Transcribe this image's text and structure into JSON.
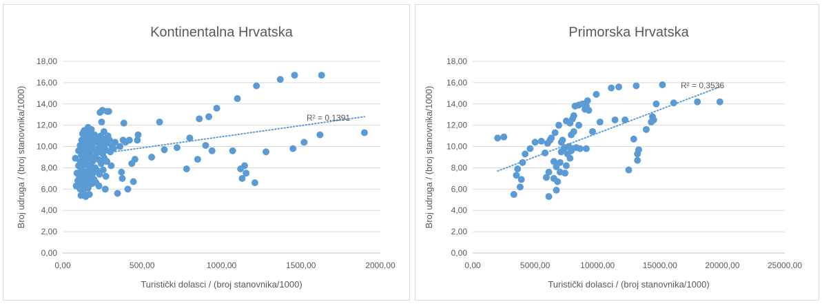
{
  "chart_data": [
    {
      "type": "scatter",
      "title": "Kontinentalna Hrvatska",
      "xlabel": "Turistički dolasci / (broj stanovnika/1000)",
      "ylabel": "Broj udruga / (broj stanovnika/1000)",
      "xlim": [
        0,
        2000
      ],
      "ylim": [
        0,
        18
      ],
      "x_ticks": [
        "0,00",
        "500,00",
        "1000,00",
        "1500,00",
        "2000,00"
      ],
      "y_ticks": [
        "0,00",
        "2,00",
        "4,00",
        "6,00",
        "8,00",
        "10,00",
        "12,00",
        "14,00",
        "16,00",
        "18,00"
      ],
      "marker_color": "#5b9bd5",
      "trendline": {
        "type": "linear",
        "style": "dotted",
        "color": "#5b9bd5",
        "r2_label": "R² = 0,1391",
        "y_at_xmin": 9.0,
        "y_at_xmax": 12.8
      },
      "series": [
        {
          "points": [
            [
              80,
              8.9
            ],
            [
              85,
              6.3
            ],
            [
              90,
              7.5
            ],
            [
              95,
              6.8
            ],
            [
              100,
              8.2
            ],
            [
              100,
              9.6
            ],
            [
              105,
              7.2
            ],
            [
              105,
              6.5
            ],
            [
              110,
              8.6
            ],
            [
              110,
              10.1
            ],
            [
              110,
              6.0
            ],
            [
              115,
              7.8
            ],
            [
              115,
              5.4
            ],
            [
              118,
              9.2
            ],
            [
              120,
              10.6
            ],
            [
              120,
              8.0
            ],
            [
              122,
              6.9
            ],
            [
              125,
              11.2
            ],
            [
              125,
              7.3
            ],
            [
              128,
              9.9
            ],
            [
              130,
              8.4
            ],
            [
              130,
              5.8
            ],
            [
              132,
              10.4
            ],
            [
              135,
              7.0
            ],
            [
              135,
              11.5
            ],
            [
              138,
              9.5
            ],
            [
              140,
              6.4
            ],
            [
              140,
              8.8
            ],
            [
              142,
              10.9
            ],
            [
              145,
              7.6
            ],
            [
              145,
              5.3
            ],
            [
              148,
              9.1
            ],
            [
              150,
              11.0
            ],
            [
              150,
              6.7
            ],
            [
              152,
              8.3
            ],
            [
              155,
              10.2
            ],
            [
              155,
              7.4
            ],
            [
              158,
              9.7
            ],
            [
              160,
              11.8
            ],
            [
              160,
              6.1
            ],
            [
              162,
              8.9
            ],
            [
              165,
              10.6
            ],
            [
              165,
              7.9
            ],
            [
              168,
              5.5
            ],
            [
              170,
              9.3
            ],
            [
              170,
              11.3
            ],
            [
              172,
              6.8
            ],
            [
              175,
              10.0
            ],
            [
              175,
              8.2
            ],
            [
              178,
              7.1
            ],
            [
              180,
              9.6
            ],
            [
              180,
              11.6
            ],
            [
              182,
              6.5
            ],
            [
              185,
              10.8
            ],
            [
              188,
              8.6
            ],
            [
              190,
              9.9
            ],
            [
              190,
              7.5
            ],
            [
              195,
              10.4
            ],
            [
              198,
              6.9
            ],
            [
              200,
              9.0
            ],
            [
              200,
              11.1
            ],
            [
              205,
              8.0
            ],
            [
              210,
              10.5
            ],
            [
              210,
              6.6
            ],
            [
              215,
              9.4
            ],
            [
              218,
              7.7
            ],
            [
              220,
              10.9
            ],
            [
              222,
              8.8
            ],
            [
              225,
              9.8
            ],
            [
              228,
              6.3
            ],
            [
              230,
              10.2
            ],
            [
              232,
              7.4
            ],
            [
              235,
              13.2
            ],
            [
              238,
              9.6
            ],
            [
              240,
              11.0
            ],
            [
              242,
              8.4
            ],
            [
              245,
              12.3
            ],
            [
              248,
              10.6
            ],
            [
              250,
              13.4
            ],
            [
              252,
              9.3
            ],
            [
              255,
              7.8
            ],
            [
              258,
              10.0
            ],
            [
              260,
              11.4
            ],
            [
              262,
              8.9
            ],
            [
              265,
              10.7
            ],
            [
              268,
              6.0
            ],
            [
              270,
              9.7
            ],
            [
              272,
              7.2
            ],
            [
              275,
              10.3
            ],
            [
              278,
              8.6
            ],
            [
              280,
              13.3
            ],
            [
              285,
              11.0
            ],
            [
              290,
              13.3
            ],
            [
              295,
              10.6
            ],
            [
              300,
              9.5
            ],
            [
              305,
              8.2
            ],
            [
              310,
              10.0
            ],
            [
              320,
              9.8
            ],
            [
              330,
              10.4
            ],
            [
              345,
              5.6
            ],
            [
              360,
              10.0
            ],
            [
              370,
              7.6
            ],
            [
              375,
              7.0
            ],
            [
              380,
              10.6
            ],
            [
              385,
              12.2
            ],
            [
              395,
              10.4
            ],
            [
              410,
              6.0
            ],
            [
              420,
              10.6
            ],
            [
              435,
              8.4
            ],
            [
              445,
              6.7
            ],
            [
              455,
              8.8
            ],
            [
              470,
              10.6
            ],
            [
              475,
              11.1
            ],
            [
              560,
              9.0
            ],
            [
              610,
              12.3
            ],
            [
              640,
              9.7
            ],
            [
              720,
              9.9
            ],
            [
              780,
              7.9
            ],
            [
              800,
              10.8
            ],
            [
              850,
              8.8
            ],
            [
              860,
              12.6
            ],
            [
              900,
              10.1
            ],
            [
              920,
              12.8
            ],
            [
              940,
              9.6
            ],
            [
              970,
              13.6
            ],
            [
              1070,
              9.6
            ],
            [
              1100,
              14.5
            ],
            [
              1120,
              7.9
            ],
            [
              1130,
              7.0
            ],
            [
              1145,
              8.2
            ],
            [
              1155,
              7.5
            ],
            [
              1210,
              6.6
            ],
            [
              1220,
              15.7
            ],
            [
              1280,
              9.5
            ],
            [
              1370,
              16.3
            ],
            [
              1450,
              9.8
            ],
            [
              1460,
              16.7
            ],
            [
              1520,
              10.4
            ],
            [
              1620,
              11.1
            ],
            [
              1630,
              16.7
            ],
            [
              1900,
              11.3
            ]
          ]
        }
      ]
    },
    {
      "type": "scatter",
      "title": "Primorska Hrvatska",
      "xlabel": "Turistički dolasci / (broj stanovnika/1000)",
      "ylabel": "Broj udruga / (broj stanovnika/1000)",
      "xlim": [
        0,
        25000
      ],
      "ylim": [
        0,
        18
      ],
      "x_ticks": [
        "0,00",
        "5000,00",
        "10000,00",
        "15000,00",
        "20000,00",
        "25000,00"
      ],
      "y_ticks": [
        "0,00",
        "2,00",
        "4,00",
        "6,00",
        "8,00",
        "10,00",
        "12,00",
        "14,00",
        "16,00",
        "18,00"
      ],
      "marker_color": "#5b9bd5",
      "trendline": {
        "type": "linear",
        "style": "dotted",
        "color": "#5b9bd5",
        "r2_label": "R² = 0,3536",
        "y_at_xmin": 7.7,
        "y_at_xmax": 15.6
      },
      "series": [
        {
          "points": [
            [
              2000,
              10.8
            ],
            [
              2500,
              10.9
            ],
            [
              3300,
              5.5
            ],
            [
              3500,
              7.3
            ],
            [
              3600,
              7.9
            ],
            [
              3800,
              6.2
            ],
            [
              3900,
              6.9
            ],
            [
              4000,
              8.5
            ],
            [
              4200,
              9.3
            ],
            [
              4600,
              9.8
            ],
            [
              5000,
              10.4
            ],
            [
              5500,
              10.5
            ],
            [
              5800,
              9.4
            ],
            [
              5900,
              7.1
            ],
            [
              6000,
              10.3
            ],
            [
              6100,
              5.3
            ],
            [
              6100,
              7.6
            ],
            [
              6200,
              10.6
            ],
            [
              6300,
              10.8
            ],
            [
              6500,
              8.6
            ],
            [
              6500,
              7.0
            ],
            [
              6600,
              11.3
            ],
            [
              6700,
              5.9
            ],
            [
              6700,
              8.1
            ],
            [
              6800,
              6.7
            ],
            [
              6900,
              12.0
            ],
            [
              7000,
              8.5
            ],
            [
              7000,
              7.6
            ],
            [
              7100,
              9.5
            ],
            [
              7100,
              10.4
            ],
            [
              7200,
              10.6
            ],
            [
              7300,
              9.8
            ],
            [
              7400,
              7.5
            ],
            [
              7400,
              9.9
            ],
            [
              7500,
              12.4
            ],
            [
              7500,
              8.2
            ],
            [
              7600,
              9.3
            ],
            [
              7700,
              10.0
            ],
            [
              7800,
              12.2
            ],
            [
              7800,
              8.9
            ],
            [
              7900,
              11.1
            ],
            [
              7900,
              9.6
            ],
            [
              8000,
              12.6
            ],
            [
              8000,
              9.8
            ],
            [
              8100,
              12.9
            ],
            [
              8100,
              11.4
            ],
            [
              8200,
              13.8
            ],
            [
              8300,
              9.9
            ],
            [
              8500,
              13.9
            ],
            [
              8500,
              12.0
            ],
            [
              8600,
              9.8
            ],
            [
              8800,
              14.0
            ],
            [
              9000,
              13.5
            ],
            [
              9100,
              13.8
            ],
            [
              9100,
              9.8
            ],
            [
              9200,
              14.3
            ],
            [
              9300,
              13.4
            ],
            [
              9600,
              11.4
            ],
            [
              9900,
              14.9
            ],
            [
              10200,
              12.3
            ],
            [
              11100,
              15.5
            ],
            [
              11400,
              12.5
            ],
            [
              11700,
              15.6
            ],
            [
              12200,
              12.5
            ],
            [
              12500,
              7.8
            ],
            [
              12900,
              10.7
            ],
            [
              13100,
              15.7
            ],
            [
              13200,
              8.7
            ],
            [
              13200,
              9.3
            ],
            [
              13300,
              9.7
            ],
            [
              13900,
              11.6
            ],
            [
              14300,
              12.3
            ],
            [
              14400,
              12.8
            ],
            [
              14500,
              12.5
            ],
            [
              14700,
              14.0
            ],
            [
              15200,
              15.8
            ],
            [
              16100,
              14.1
            ],
            [
              18000,
              14.2
            ],
            [
              19800,
              14.2
            ]
          ]
        }
      ]
    }
  ]
}
